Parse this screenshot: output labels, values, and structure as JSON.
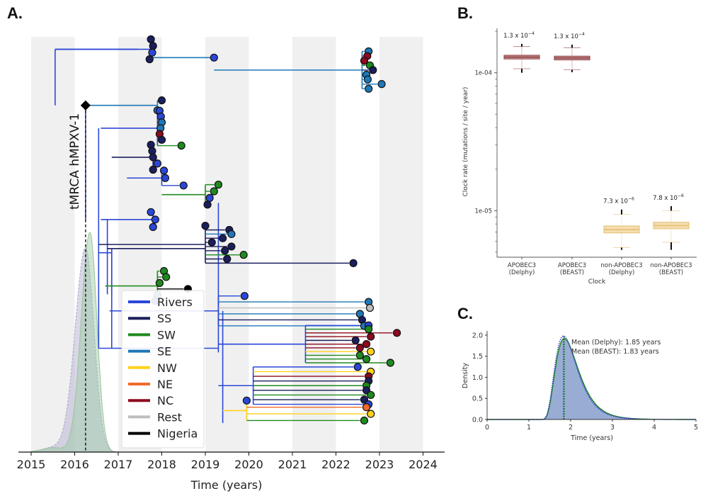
{
  "panels": {
    "a_label": "A.",
    "b_label": "B.",
    "c_label": "C."
  },
  "colors": {
    "Rivers": "#2b47d8",
    "SS": "#1b1f5e",
    "SW": "#1f8a1f",
    "SE": "#1f78b8",
    "NW": "#ffd21a",
    "NE": "#f26a2a",
    "NC": "#8b0a1f",
    "Rest": "#bdbdbd",
    "Nigeria": "#000000"
  },
  "chart_data": [
    {
      "id": "A",
      "type": "tree",
      "title": "",
      "xlabel": "Time (years)",
      "ylabel": "",
      "xlim": [
        2014.95,
        2024.3
      ],
      "x_ticks": [
        "2015",
        "2016",
        "2017",
        "2018",
        "2019",
        "2020",
        "2021",
        "2022",
        "2023",
        "2024"
      ],
      "shaded_year_bands": [
        [
          2015,
          2016
        ],
        [
          2017,
          2018
        ],
        [
          2019,
          2020
        ],
        [
          2021,
          2022
        ],
        [
          2023,
          2024
        ]
      ],
      "annotation": {
        "text": "tMRCA hMPXV-1",
        "x": 2016.25,
        "marker": "diamond"
      },
      "legend": {
        "position": "lower-left",
        "entries": [
          "Rivers",
          "SS",
          "SW",
          "SE",
          "NW",
          "NE",
          "NC",
          "Rest",
          "Nigeria"
        ]
      },
      "density": {
        "series": [
          {
            "name": "tMRCA density (green)",
            "peak_x": 2016.35,
            "sd": 0.2,
            "peak_rel": 1.0,
            "color": "#b5d9a8"
          },
          {
            "name": "tMRCA density (grey dashed)",
            "peak_x": 2016.25,
            "sd": 0.24,
            "peak_rel": 0.93,
            "color": "#b9b7d6"
          }
        ]
      },
      "tips_note": "Approximate tree: clades with ancestral time, tip times and location colors",
      "clades": [
        {
          "from": 2015.55,
          "x": 2017.75,
          "region": "Rivers",
          "tips": [
            [
              "SS",
              2017.75
            ],
            [
              "SS",
              2017.8
            ],
            [
              "Rivers",
              2017.78
            ],
            [
              "SS",
              2017.72
            ]
          ],
          "y": 0.03
        },
        {
          "from": 2017.75,
          "x": 2019.2,
          "region": "SE",
          "tips": [
            [
              "Rivers",
              2019.2
            ]
          ],
          "y": 0.05
        },
        {
          "from": 2019.2,
          "x": 2022.6,
          "region": "SE",
          "tips": [
            [
              "SE",
              2022.75
            ],
            [
              "NC",
              2022.72
            ],
            [
              "NC",
              2022.65
            ],
            [
              "SW",
              2022.78
            ],
            [
              "SS",
              2022.85
            ],
            [
              "SE",
              2022.7
            ],
            [
              "SE",
              2022.73
            ],
            [
              "SE",
              2023.05
            ],
            [
              "SE",
              2022.75
            ]
          ],
          "y": 0.08
        },
        {
          "from": 2016.25,
          "x": 2017.9,
          "region": "SE",
          "tips": [
            [
              "SS",
              2018.0
            ],
            [
              "SE",
              2017.9
            ]
          ],
          "y": 0.165
        },
        {
          "from": 2016.6,
          "x": 2017.9,
          "region": "Rivers",
          "tips": [
            [
              "Rivers",
              2017.95
            ],
            [
              "Rivers",
              2017.98
            ],
            [
              "SE",
              2018.0
            ],
            [
              "SE",
              2017.97
            ],
            [
              "NC",
              2017.95
            ],
            [
              "SS",
              2018.0
            ],
            [
              "SW",
              2018.45
            ]
          ],
          "y": 0.22
        },
        {
          "from": 2016.85,
          "x": 2017.8,
          "region": "SS",
          "tips": [
            [
              "SS",
              2017.75
            ],
            [
              "SS",
              2017.78
            ],
            [
              "SS",
              2017.8
            ],
            [
              "Rivers",
              2017.9
            ],
            [
              "SS",
              2017.8
            ]
          ],
          "y": 0.29
        },
        {
          "from": 2017.2,
          "x": 2018.0,
          "region": "Rivers",
          "tips": [
            [
              "Rivers",
              2018.05
            ],
            [
              "Rivers",
              2018.08
            ],
            [
              "Rivers",
              2018.5
            ]
          ],
          "y": 0.34
        },
        {
          "from": 2018.0,
          "x": 2019.0,
          "region": "SW",
          "tips": [
            [
              "SW",
              2019.3
            ],
            [
              "SW",
              2019.2
            ],
            [
              "Rivers",
              2019.1
            ],
            [
              "SS",
              2019.05
            ]
          ],
          "y": 0.38
        },
        {
          "from": 2016.6,
          "x": 2017.8,
          "region": "Rivers",
          "tips": [
            [
              "Rivers",
              2017.75
            ],
            [
              "Rivers",
              2017.85
            ],
            [
              "Rivers",
              2017.8
            ]
          ],
          "y": 0.44
        },
        {
          "from": 2016.55,
          "x": 2019.0,
          "region": "SS",
          "tips": [
            [
              "SS",
              2019.0
            ],
            [
              "SS",
              2019.55
            ],
            [
              "SE",
              2019.6
            ],
            [
              "SS",
              2019.4
            ],
            [
              "SS",
              2019.15
            ],
            [
              "SS",
              2019.6
            ],
            [
              "SS",
              2019.45
            ],
            [
              "SW",
              2019.88
            ],
            [
              "SS",
              2019.5
            ],
            [
              "SS",
              2022.4
            ]
          ],
          "y": 0.5
        },
        {
          "from": 2016.7,
          "x": 2017.9,
          "region": "SW",
          "tips": [
            [
              "SW",
              2018.05
            ],
            [
              "SW",
              2018.1
            ],
            [
              "SW",
              2017.95
            ],
            [
              "Nigeria",
              2018.6
            ],
            [
              "SE",
              2017.9
            ],
            [
              "Rivers",
              2017.85
            ]
          ],
          "y": 0.6
        },
        {
          "from": 2016.8,
          "x": 2019.3,
          "region": "Rivers",
          "tips": [
            [
              "Rivers",
              2019.9
            ],
            [
              "SE",
              2022.75
            ],
            [
              "Rest",
              2022.78
            ],
            [
              "SE",
              2022.55
            ],
            [
              "SS",
              2022.6
            ],
            [
              "SE",
              2022.65
            ]
          ],
          "y": 0.66
        },
        {
          "from": 2019.3,
          "x": 2021.3,
          "region": "Rivers",
          "tips": [
            [
              "Rivers",
              2022.75
            ],
            [
              "SW",
              2022.75
            ],
            [
              "NC",
              2023.4
            ],
            [
              "NC",
              2022.8
            ],
            [
              "SS",
              2022.45
            ],
            [
              "NC",
              2022.7
            ],
            [
              "NC",
              2022.55
            ],
            [
              "NW",
              2022.8
            ],
            [
              "SW",
              2022.55
            ],
            [
              "SW",
              2022.7
            ],
            [
              "SW",
              2023.25
            ]
          ],
          "y": 0.74
        },
        {
          "from": 2019.3,
          "x": 2020.1,
          "region": "Rivers",
          "tips": [
            [
              "Rivers",
              2022.5
            ],
            [
              "NW",
              2022.8
            ],
            [
              "NC",
              2022.75
            ],
            [
              "SS",
              2022.75
            ],
            [
              "SW",
              2022.7
            ],
            [
              "SS",
              2022.7
            ],
            [
              "SW",
              2022.8
            ],
            [
              "SS",
              2022.65
            ],
            [
              "Rivers",
              2022.75
            ]
          ],
          "y": 0.84
        },
        {
          "from": 2019.4,
          "x": 2019.95,
          "region": "NW",
          "tips": [
            [
              "Rivers",
              2019.95
            ],
            [
              "NE",
              2022.7
            ],
            [
              "NW",
              2022.8
            ],
            [
              "SW",
              2022.65
            ]
          ],
          "y": 0.9
        }
      ]
    },
    {
      "id": "B",
      "type": "box",
      "title": "",
      "xlabel": "Clock",
      "ylabel": "Clock rate (mutations / site / year)",
      "yscale": "log",
      "ylim": [
        4.6e-06,
        0.00021
      ],
      "y_ticks": [
        "1e-04",
        "1e-05"
      ],
      "categories": [
        "APOBEC3\n(Delphy)",
        "APOBEC3\n(BEAST)",
        "non-APOBEC3\n(Delphy)",
        "non-APOBEC3\n(BEAST)"
      ],
      "category_lines": [
        [
          "APOBEC3",
          "(Delphy)"
        ],
        [
          "APOBEC3",
          "(BEAST)"
        ],
        [
          "non-APOBEC3",
          "(Delphy)"
        ],
        [
          "non-APOBEC3",
          "(BEAST)"
        ]
      ],
      "labels": [
        "1.3 x 10^-4",
        "1.3 x 10^-4",
        "7.3 x 10^-6",
        "7.8 x 10^-6"
      ],
      "label_parts": [
        [
          "1.3 x 10",
          "−4"
        ],
        [
          "1.3 x 10",
          "−4"
        ],
        [
          "7.3 x 10",
          "−6"
        ],
        [
          "7.8 x 10",
          "−6"
        ]
      ],
      "boxes": [
        {
          "median": 0.00013,
          "q1": 0.000126,
          "q3": 0.000134,
          "whislo": 0.000107,
          "whishi": 0.000155,
          "min": 0.0001,
          "max": 0.000162,
          "color": "#8c3b3f",
          "fill": "#c99a9b"
        },
        {
          "median": 0.000128,
          "q1": 0.000124,
          "q3": 0.000132,
          "whislo": 0.000105,
          "whishi": 0.000152,
          "min": 0.000101,
          "max": 0.00016,
          "color": "#8c3b3f",
          "fill": "#c99a9b"
        },
        {
          "median": 7.3e-06,
          "q1": 6.9e-06,
          "q3": 7.75e-06,
          "whislo": 5.4e-06,
          "whishi": 9.4e-06,
          "min": 5.2e-06,
          "max": 1.02e-05,
          "color": "#e3bd72",
          "fill": "#f5deaf"
        },
        {
          "median": 7.8e-06,
          "q1": 7.4e-06,
          "q3": 8.25e-06,
          "whislo": 5.9e-06,
          "whishi": 1e-05,
          "min": 5.2e-06,
          "max": 1.08e-05,
          "color": "#e3bd72",
          "fill": "#f5deaf"
        }
      ]
    },
    {
      "id": "C",
      "type": "area",
      "title": "",
      "xlabel": "Time (years)",
      "ylabel": "Density",
      "xlim": [
        0,
        5
      ],
      "ylim": [
        0,
        2.1
      ],
      "x_ticks": [
        "0",
        "1",
        "2",
        "3",
        "4",
        "5"
      ],
      "y_ticks": [
        "0.0",
        "0.5",
        "1.0",
        "1.5",
        "2.0"
      ],
      "annotations": [
        "Mean (Delphy): 1.85 years",
        "Mean (BEAST): 1.83 years"
      ],
      "series": [
        {
          "name": "Delphy",
          "mean": 1.85,
          "mode": 1.8,
          "peak": 1.92,
          "style": "filled",
          "color": "#7f97c9",
          "line": "#1f8a1f"
        },
        {
          "name": "BEAST",
          "mean": 1.83,
          "mode": 1.78,
          "peak": 1.98,
          "style": "dotted",
          "color": "#2b2bd8"
        }
      ],
      "mean_lines": [
        1.85,
        1.83
      ]
    }
  ]
}
